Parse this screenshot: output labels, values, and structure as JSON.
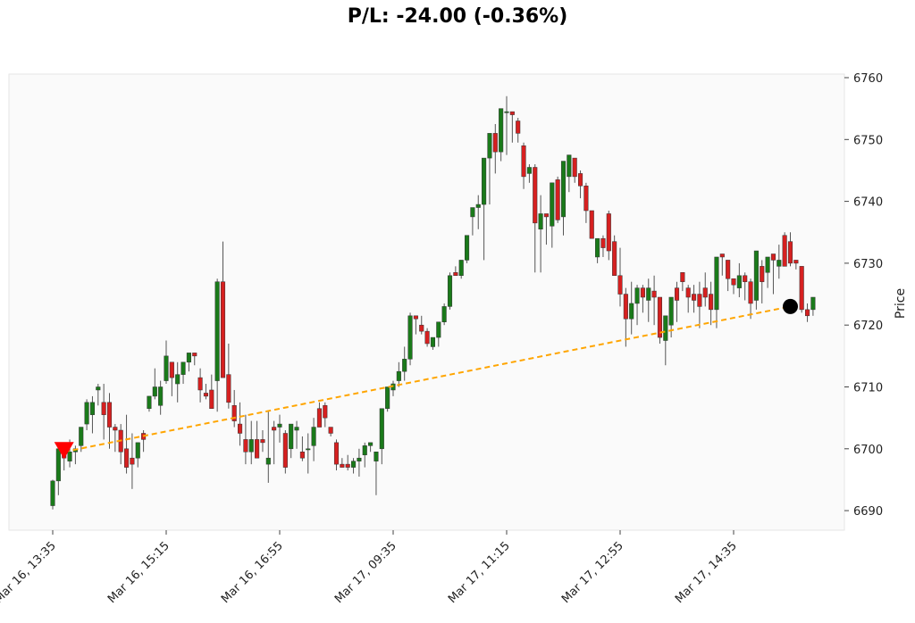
{
  "title": "P/L: -24.00 (-0.36%)",
  "colors": {
    "plot_bg": "#fafafa",
    "plot_border": "#e6e6e6",
    "up": "#1a7a1a",
    "down": "#d62020",
    "wick": "#555555",
    "trend_line": "#ffa500",
    "entry_marker": "#ff0000",
    "exit_marker": "#000000"
  },
  "chart_data": {
    "type": "candlestick",
    "title": "P/L: -24.00 (-0.36%)",
    "xlabel": "",
    "ylabel": "Price",
    "ylim": [
      6686.5,
      6763.5
    ],
    "yticks": [
      6690,
      6700,
      6710,
      6720,
      6730,
      6740,
      6750,
      6760
    ],
    "xticks": [
      {
        "index": 0,
        "label": "Mar 16, 13:35"
      },
      {
        "index": 20,
        "label": "Mar 16, 15:15"
      },
      {
        "index": 40,
        "label": "Mar 16, 16:55"
      },
      {
        "index": 60,
        "label": "Mar 17, 09:35"
      },
      {
        "index": 80,
        "label": "Mar 17, 11:15"
      },
      {
        "index": 100,
        "label": "Mar 17, 12:55"
      },
      {
        "index": 120,
        "label": "Mar 17, 14:35"
      }
    ],
    "grid": false,
    "y_axis_position": "right",
    "candles": [
      [
        6690.8,
        6695.0,
        6690.2,
        6694.8
      ],
      [
        6694.8,
        6700.5,
        6692.5,
        6700.0
      ],
      [
        6700.0,
        6700.5,
        6696.5,
        6698.5
      ],
      [
        6698.0,
        6701.5,
        6697.0,
        6699.5
      ],
      [
        6699.5,
        6700.5,
        6697.5,
        6700.0
      ],
      [
        6700.5,
        6703.5,
        6699.5,
        6703.5
      ],
      [
        6704.0,
        6708.0,
        6703.0,
        6707.5
      ],
      [
        6705.5,
        6708.5,
        6702.5,
        6707.5
      ],
      [
        6709.5,
        6710.5,
        6707.0,
        6710.0
      ],
      [
        6707.5,
        6710.5,
        6701.5,
        6705.5
      ],
      [
        6707.5,
        6709.0,
        6700.0,
        6703.5
      ],
      [
        6703.5,
        6704.0,
        6699.5,
        6703.0
      ],
      [
        6703.0,
        6704.0,
        6697.5,
        6699.5
      ],
      [
        6700.0,
        6705.5,
        6696.0,
        6697.0
      ],
      [
        6698.5,
        6702.5,
        6693.5,
        6697.5
      ],
      [
        6698.5,
        6701.0,
        6697.0,
        6701.0
      ],
      [
        6702.5,
        6703.0,
        6699.5,
        6701.5
      ],
      [
        6706.5,
        6708.5,
        6706.0,
        6708.5
      ],
      [
        6708.5,
        6713.0,
        6708.0,
        6710.0
      ],
      [
        6707.0,
        6711.0,
        6705.5,
        6710.0
      ],
      [
        6711.0,
        6717.5,
        6710.5,
        6715.0
      ],
      [
        6714.0,
        6712.5,
        6708.5,
        6711.5
      ],
      [
        6710.5,
        6714.0,
        6707.5,
        6712.0
      ],
      [
        6712.0,
        6713.5,
        6710.5,
        6714.0
      ],
      [
        6714.0,
        6715.5,
        6712.5,
        6715.5
      ],
      [
        6715.5,
        6715.5,
        6713.5,
        6715.0
      ],
      [
        6711.5,
        6713.0,
        6707.5,
        6709.5
      ],
      [
        6709.0,
        6710.5,
        6708.0,
        6708.5
      ],
      [
        6709.5,
        6712.0,
        6706.5,
        6706.5
      ],
      [
        6711.0,
        6727.5,
        6706.0,
        6727.0
      ],
      [
        6727.0,
        6733.5,
        6712.5,
        6711.5
      ],
      [
        6712.0,
        6717.0,
        6706.5,
        6707.5
      ],
      [
        6707.0,
        6709.5,
        6703.5,
        6704.5
      ],
      [
        6704.0,
        6707.5,
        6700.5,
        6702.5
      ],
      [
        6701.5,
        6705.5,
        6697.5,
        6699.5
      ],
      [
        6699.5,
        6704.5,
        6697.5,
        6701.5
      ],
      [
        6701.5,
        6704.5,
        6698.5,
        6698.5
      ],
      [
        6701.5,
        6703.0,
        6699.5,
        6701.0
      ],
      [
        6697.5,
        6706.0,
        6694.5,
        6698.5
      ],
      [
        6703.5,
        6704.5,
        6697.5,
        6703.0
      ],
      [
        6703.5,
        6705.5,
        6701.0,
        6704.0
      ],
      [
        6702.5,
        6703.0,
        6696.0,
        6697.0
      ],
      [
        6700.0,
        6704.0,
        6698.5,
        6704.0
      ],
      [
        6703.0,
        6704.5,
        6700.0,
        6703.5
      ],
      [
        6699.5,
        6702.0,
        6698.0,
        6698.5
      ],
      [
        6700.0,
        6702.5,
        6696.0,
        6700.0
      ],
      [
        6700.5,
        6705.0,
        6698.0,
        6703.5
      ],
      [
        6706.5,
        6707.5,
        6704.5,
        6703.5
      ],
      [
        6707.0,
        6707.5,
        6703.5,
        6705.0
      ],
      [
        6703.5,
        6703.5,
        6702.0,
        6702.5
      ],
      [
        6701.0,
        6701.5,
        6696.5,
        6697.5
      ],
      [
        6697.5,
        6698.5,
        6697.0,
        6697.0
      ],
      [
        6697.5,
        6699.0,
        6696.5,
        6697.0
      ],
      [
        6697.0,
        6698.5,
        6696.0,
        6698.0
      ],
      [
        6698.0,
        6700.0,
        6695.5,
        6698.5
      ],
      [
        6699.0,
        6701.0,
        6697.0,
        6700.5
      ],
      [
        6700.5,
        6701.0,
        6699.5,
        6701.0
      ],
      [
        6698.0,
        6699.5,
        6692.5,
        6699.5
      ],
      [
        6700.0,
        6700.5,
        6697.5,
        6706.5
      ],
      [
        6706.5,
        6709.5,
        6706.0,
        6710.0
      ],
      [
        6709.5,
        6711.0,
        6708.5,
        6710.5
      ],
      [
        6711.0,
        6714.0,
        6710.0,
        6712.5
      ],
      [
        6712.5,
        6716.5,
        6711.0,
        6714.5
      ],
      [
        6714.5,
        6722.0,
        6713.5,
        6721.5
      ],
      [
        6721.5,
        6721.5,
        6718.5,
        6721.0
      ],
      [
        6720.0,
        6721.5,
        6718.5,
        6719.0
      ],
      [
        6719.0,
        6719.5,
        6716.5,
        6717.0
      ],
      [
        6716.5,
        6718.0,
        6716.0,
        6718.0
      ],
      [
        6718.0,
        6720.0,
        6716.5,
        6720.5
      ],
      [
        6720.5,
        6723.5,
        6720.0,
        6723.0
      ],
      [
        6723.0,
        6728.5,
        6722.5,
        6728.0
      ],
      [
        6728.5,
        6729.5,
        6728.0,
        6728.0
      ],
      [
        6728.0,
        6729.5,
        6727.5,
        6730.5
      ],
      [
        6730.5,
        6734.5,
        6730.0,
        6734.5
      ],
      [
        6737.5,
        6738.5,
        6734.5,
        6739.0
      ],
      [
        6739.0,
        6741.0,
        6735.5,
        6739.5
      ],
      [
        6739.5,
        6745.5,
        6730.5,
        6747.0
      ],
      [
        6747.0,
        6751.0,
        6739.5,
        6751.0
      ],
      [
        6751.0,
        6752.5,
        6744.5,
        6748.0
      ],
      [
        6748.0,
        6753.0,
        6746.5,
        6755.0
      ],
      [
        6754.5,
        6757.0,
        6747.5,
        6754.5
      ],
      [
        6754.5,
        6754.0,
        6749.5,
        6754.0
      ],
      [
        6753.0,
        6753.5,
        6749.5,
        6751.0
      ],
      [
        6749.0,
        6749.5,
        6742.0,
        6744.0
      ],
      [
        6744.5,
        6746.0,
        6743.0,
        6745.5
      ],
      [
        6745.5,
        6746.0,
        6728.5,
        6736.5
      ],
      [
        6735.5,
        6741.0,
        6728.5,
        6738.0
      ],
      [
        6738.0,
        6737.0,
        6733.0,
        6737.5
      ],
      [
        6736.0,
        6741.5,
        6732.5,
        6743.0
      ],
      [
        6743.5,
        6744.0,
        6736.5,
        6737.0
      ],
      [
        6737.5,
        6746.0,
        6734.5,
        6746.5
      ],
      [
        6744.0,
        6745.0,
        6741.5,
        6747.5
      ],
      [
        6747.0,
        6746.5,
        6743.0,
        6744.0
      ],
      [
        6744.5,
        6745.0,
        6740.5,
        6742.5
      ],
      [
        6742.5,
        6743.0,
        6736.5,
        6738.5
      ],
      [
        6738.5,
        6738.5,
        6734.0,
        6734.0
      ],
      [
        6731.0,
        6733.5,
        6730.0,
        6734.0
      ],
      [
        6734.0,
        6734.5,
        6731.0,
        6732.5
      ],
      [
        6738.0,
        6738.5,
        6730.5,
        6732.0
      ],
      [
        6733.5,
        6734.5,
        6728.5,
        6728.0
      ],
      [
        6728.0,
        6732.5,
        6723.0,
        6725.0
      ],
      [
        6725.0,
        6726.0,
        6716.5,
        6721.0
      ],
      [
        6721.0,
        6727.0,
        6718.5,
        6723.5
      ],
      [
        6723.5,
        6726.5,
        6720.0,
        6726.0
      ],
      [
        6726.0,
        6726.5,
        6722.0,
        6724.5
      ],
      [
        6724.0,
        6727.5,
        6720.5,
        6726.0
      ],
      [
        6725.5,
        6728.0,
        6720.0,
        6724.5
      ],
      [
        6724.5,
        6724.5,
        6717.0,
        6718.0
      ],
      [
        6717.5,
        6720.5,
        6713.5,
        6721.5
      ],
      [
        6720.0,
        6723.5,
        6718.0,
        6724.5
      ],
      [
        6726.0,
        6727.0,
        6720.5,
        6724.0
      ],
      [
        6728.5,
        6728.5,
        6725.5,
        6727.0
      ],
      [
        6726.0,
        6726.5,
        6722.0,
        6724.5
      ],
      [
        6725.0,
        6726.5,
        6722.0,
        6724.0
      ],
      [
        6725.0,
        6727.0,
        6719.5,
        6723.0
      ],
      [
        6726.0,
        6728.5,
        6723.0,
        6724.5
      ],
      [
        6725.0,
        6727.0,
        6720.0,
        6722.5
      ],
      [
        6722.5,
        6726.5,
        6719.5,
        6731.0
      ],
      [
        6731.5,
        6731.5,
        6728.0,
        6731.0
      ],
      [
        6730.5,
        6729.5,
        6725.5,
        6727.5
      ],
      [
        6727.5,
        6727.5,
        6725.0,
        6726.5
      ],
      [
        6726.0,
        6730.0,
        6724.5,
        6728.0
      ],
      [
        6728.0,
        6728.5,
        6724.0,
        6727.0
      ],
      [
        6727.0,
        6727.5,
        6721.0,
        6723.5
      ],
      [
        6724.0,
        6732.0,
        6722.5,
        6732.0
      ],
      [
        6729.5,
        6730.5,
        6723.5,
        6727.0
      ],
      [
        6728.5,
        6731.0,
        6726.0,
        6731.0
      ],
      [
        6731.5,
        6729.5,
        6725.0,
        6730.5
      ],
      [
        6729.5,
        6733.0,
        6727.5,
        6730.5
      ],
      [
        6734.5,
        6735.0,
        6729.5,
        6729.5
      ],
      [
        6733.5,
        6735.0,
        6729.5,
        6730.0
      ],
      [
        6730.5,
        6730.5,
        6729.0,
        6730.0
      ],
      [
        6729.5,
        6729.0,
        6722.0,
        6722.5
      ],
      [
        6722.5,
        6723.5,
        6720.5,
        6721.5
      ],
      [
        6722.5,
        6724.5,
        6721.5,
        6724.5
      ]
    ],
    "candle_format": [
      "open",
      "high",
      "low",
      "close"
    ],
    "annotations": {
      "entry": {
        "index": 2,
        "price": 6699.5,
        "marker": "red-down-triangle"
      },
      "exit": {
        "index": 130,
        "price": 6723.0,
        "marker": "black-circle"
      },
      "trend_line": {
        "from": [
          2,
          6699.5
        ],
        "to": [
          130,
          6723.0
        ],
        "style": "dashed",
        "color": "#ffa500"
      }
    }
  }
}
